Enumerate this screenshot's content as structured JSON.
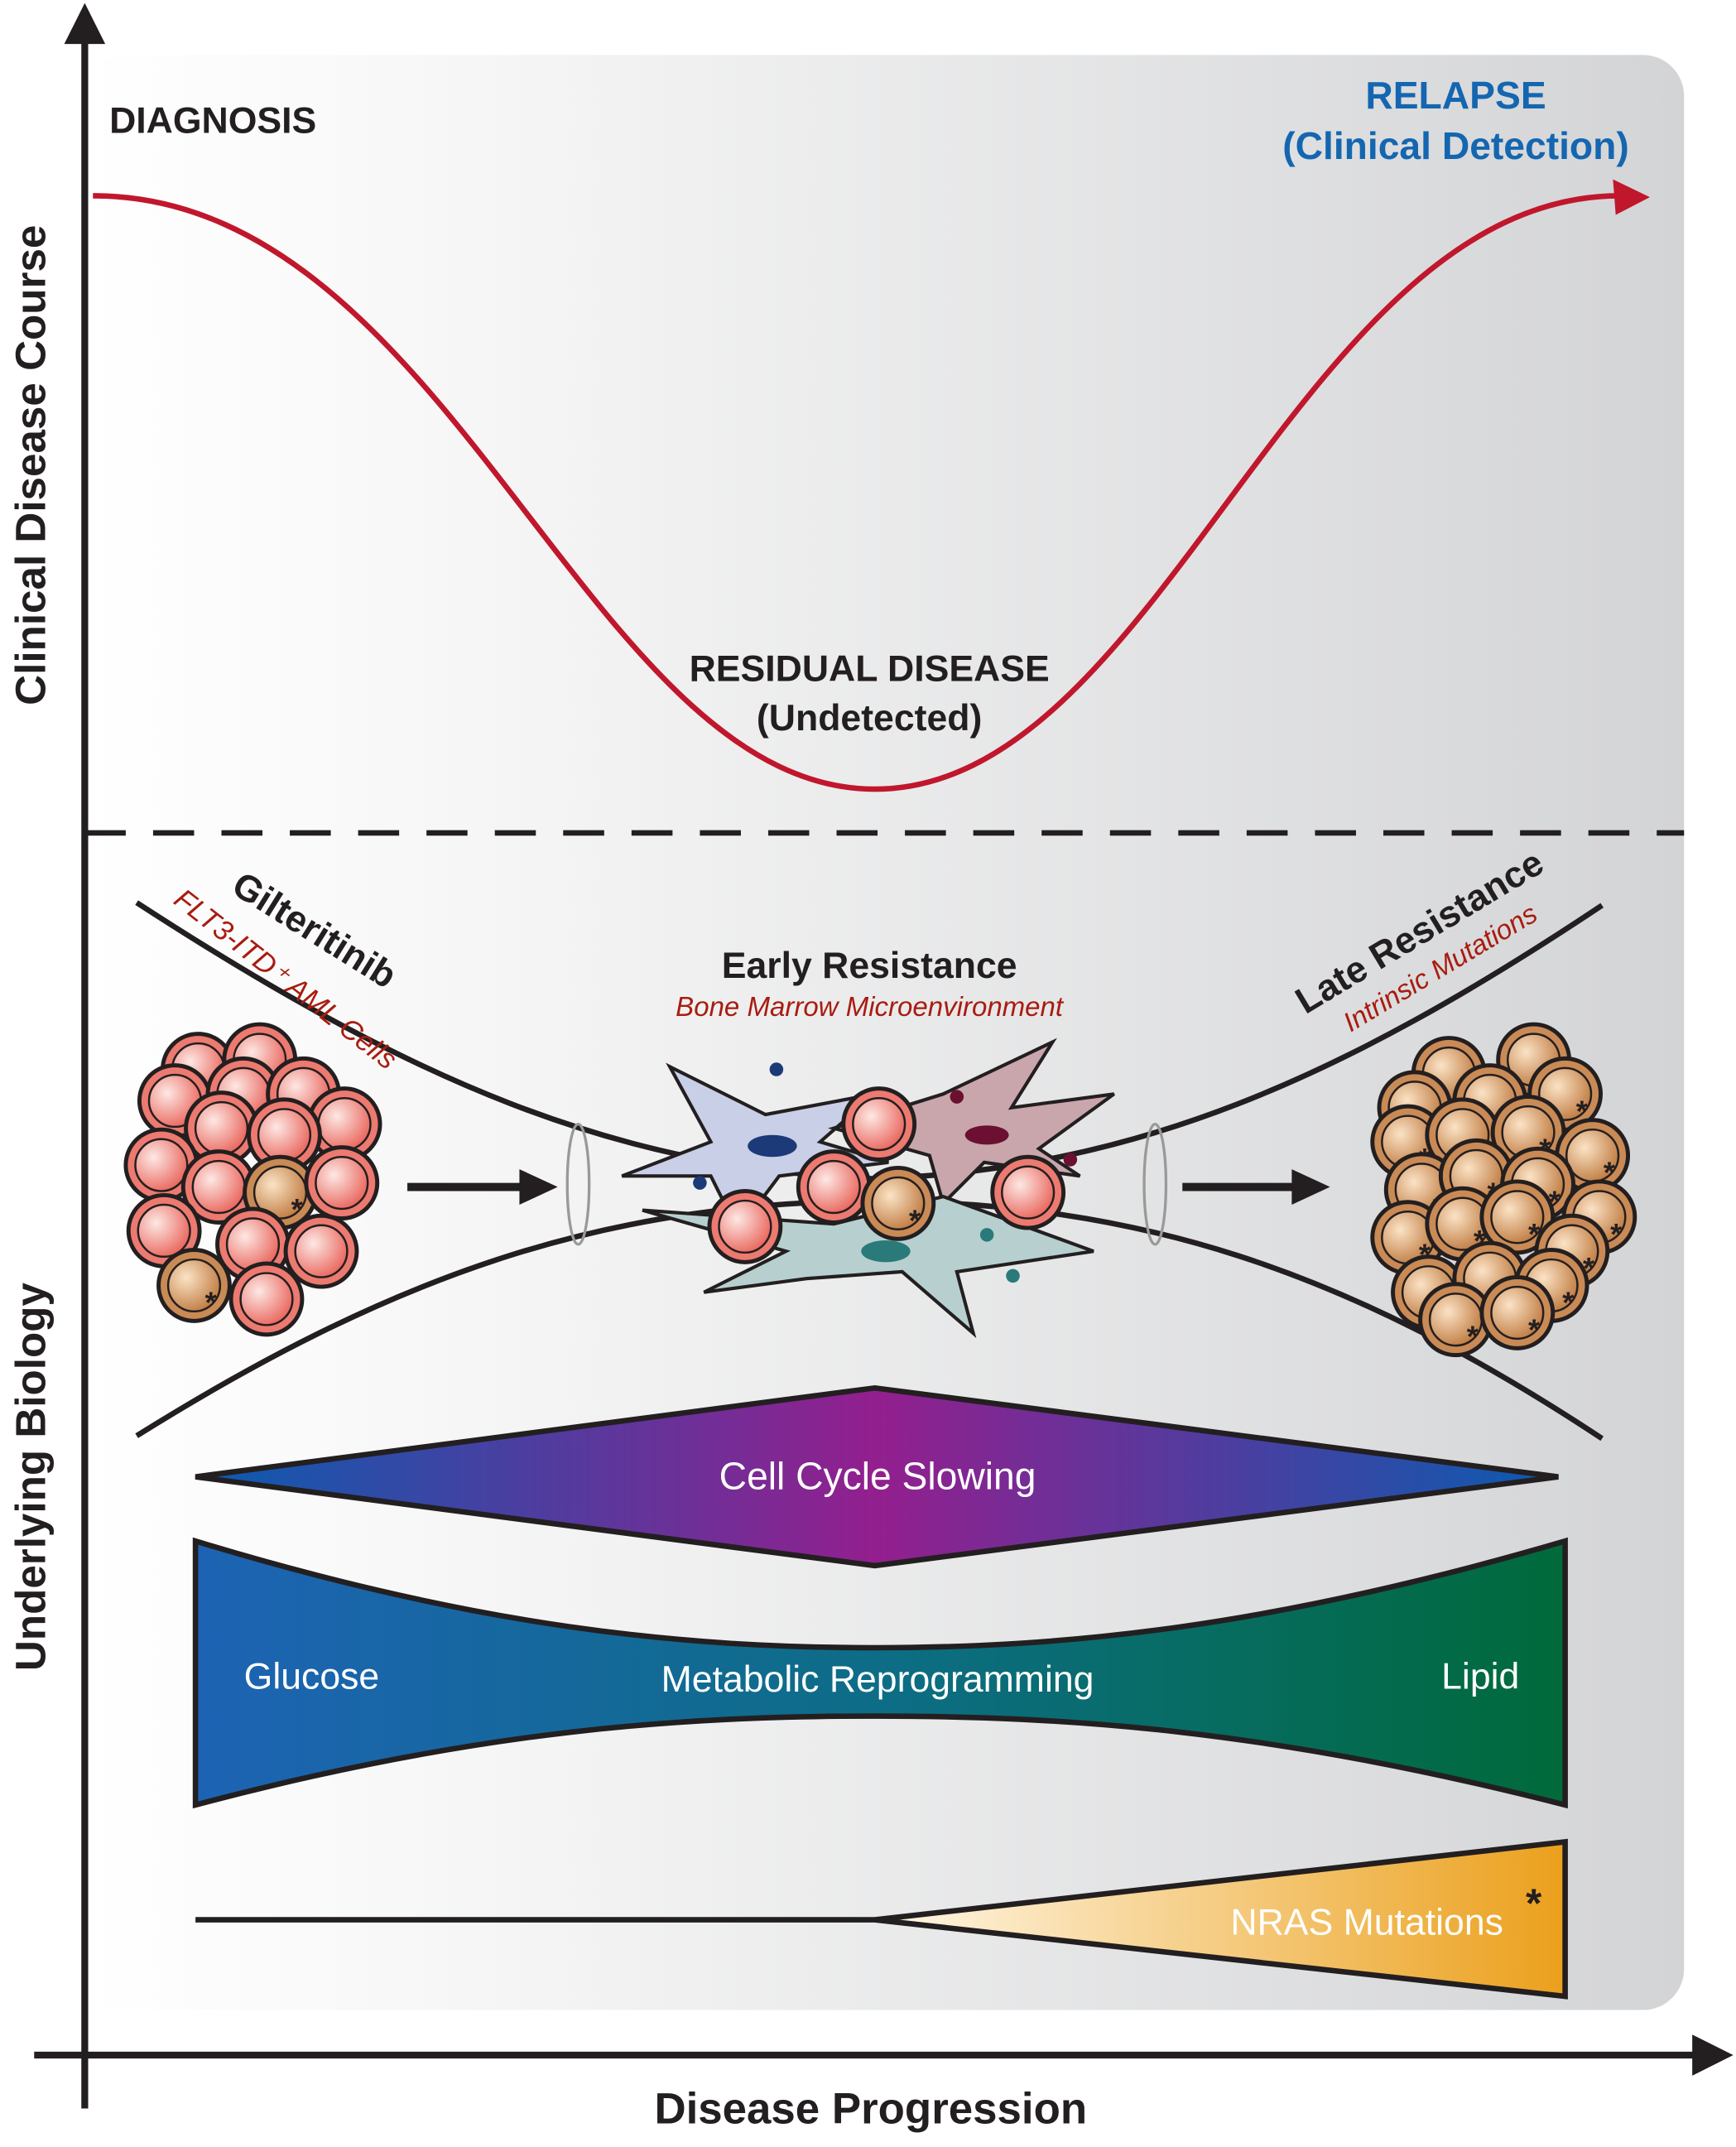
{
  "axes": {
    "y_top_label": "Clinical Disease Course",
    "y_bottom_label": "Underlying Biology",
    "x_label": "Disease Progression"
  },
  "clinical": {
    "diagnosis": "DIAGNOSIS",
    "relapse": "RELAPSE",
    "relapse_sub": "(Clinical Detection)",
    "residual": "RESIDUAL DISEASE",
    "residual_sub": "(Undetected)"
  },
  "biology": {
    "left_title": "Gilteritinib",
    "left_sub": "FLT3-ITD⁺ AML Cells",
    "mid_title": "Early Resistance",
    "mid_sub": "Bone Marrow Microenvironment",
    "right_title": "Late Resistance",
    "right_sub": "Intrinsic Mutations"
  },
  "bands": {
    "cell_cycle": "Cell Cycle Slowing",
    "metabolic": "Metabolic Reprogramming",
    "glucose": "Glucose",
    "lipid": "Lipid",
    "nras": "NRAS Mutations",
    "nras_mark": "*"
  },
  "colors": {
    "curve": "#c0172d",
    "relapse": "#1466b0",
    "subtitle_red": "#a81c10",
    "aml_cell": "#ec7a70",
    "mutant_cell": "#c98a55",
    "cell_cycle_edge": "#0a5bb0",
    "cell_cycle_mid": "#931f8e",
    "glucose": "#1d63b4",
    "lipid": "#006a3a",
    "nras": "#eba01c"
  }
}
